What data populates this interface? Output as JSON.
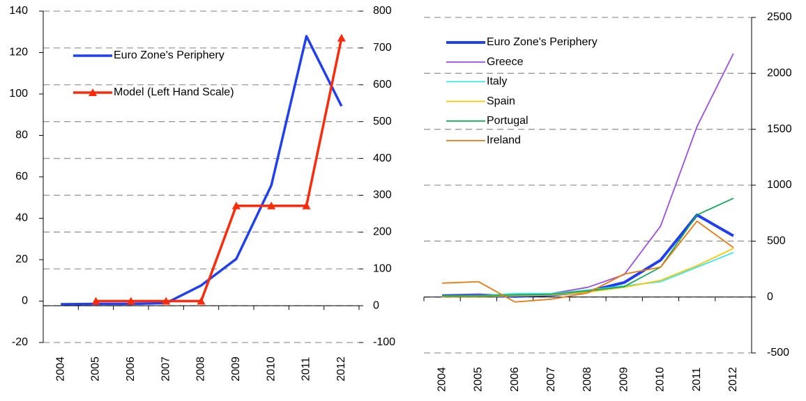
{
  "chart_data": [
    {
      "type": "line",
      "categories": [
        "2004",
        "2005",
        "2006",
        "2007",
        "2008",
        "2009",
        "2010",
        "2011",
        "2012"
      ],
      "ylim": [
        -20,
        140
      ],
      "yticks": [
        -20,
        0,
        20,
        40,
        60,
        80,
        100,
        120,
        140
      ],
      "y2lim": [
        -100,
        800
      ],
      "y2ticks": [
        -100,
        0,
        100,
        200,
        300,
        400,
        500,
        600,
        700,
        800
      ],
      "grid": "y2",
      "series": [
        {
          "name": "Euro Zone's Periphery",
          "color": "#1f3ff0",
          "axis": "y2",
          "values": [
            4,
            5,
            5,
            7,
            55,
            127,
            327,
            732,
            542
          ]
        },
        {
          "name": "Model (Left Hand Scale)",
          "color": "#ff2a0a",
          "marker": "triangle",
          "values": [
            null,
            0,
            0,
            0,
            0,
            46,
            46,
            46,
            127
          ]
        }
      ]
    },
    {
      "type": "line",
      "categories": [
        "2004",
        "2005",
        "2006",
        "2007",
        "2008",
        "2009",
        "2010",
        "2011",
        "2012"
      ],
      "ylim": [
        -500,
        2500
      ],
      "yticks": [
        -500,
        0,
        500,
        1000,
        1500,
        2000,
        2500
      ],
      "grid": true,
      "series": [
        {
          "name": "Euro Zone's Periphery",
          "color": "#1f3ff0",
          "width": 4,
          "values": [
            12,
            19,
            6,
            19,
            50,
            130,
            330,
            734,
            547
          ]
        },
        {
          "name": "Greece",
          "color": "#9a4fe0",
          "values": [
            12,
            19,
            19,
            31,
            87,
            200,
            634,
            1524,
            2177
          ]
        },
        {
          "name": "Italy",
          "color": "#33e6f0",
          "values": [
            12,
            12,
            31,
            31,
            62,
            100,
            137,
            267,
            398
          ]
        },
        {
          "name": "Spain",
          "color": "#f5c800",
          "values": [
            6,
            6,
            12,
            19,
            44,
            87,
            149,
            280,
            435
          ]
        },
        {
          "name": "Portugal",
          "color": "#17a85a",
          "values": [
            12,
            12,
            19,
            25,
            56,
            93,
            267,
            734,
            883
          ]
        },
        {
          "name": "Ireland",
          "color": "#e8790f",
          "values": [
            124,
            137,
            -44,
            -19,
            37,
            205,
            267,
            678,
            442
          ]
        }
      ]
    }
  ]
}
